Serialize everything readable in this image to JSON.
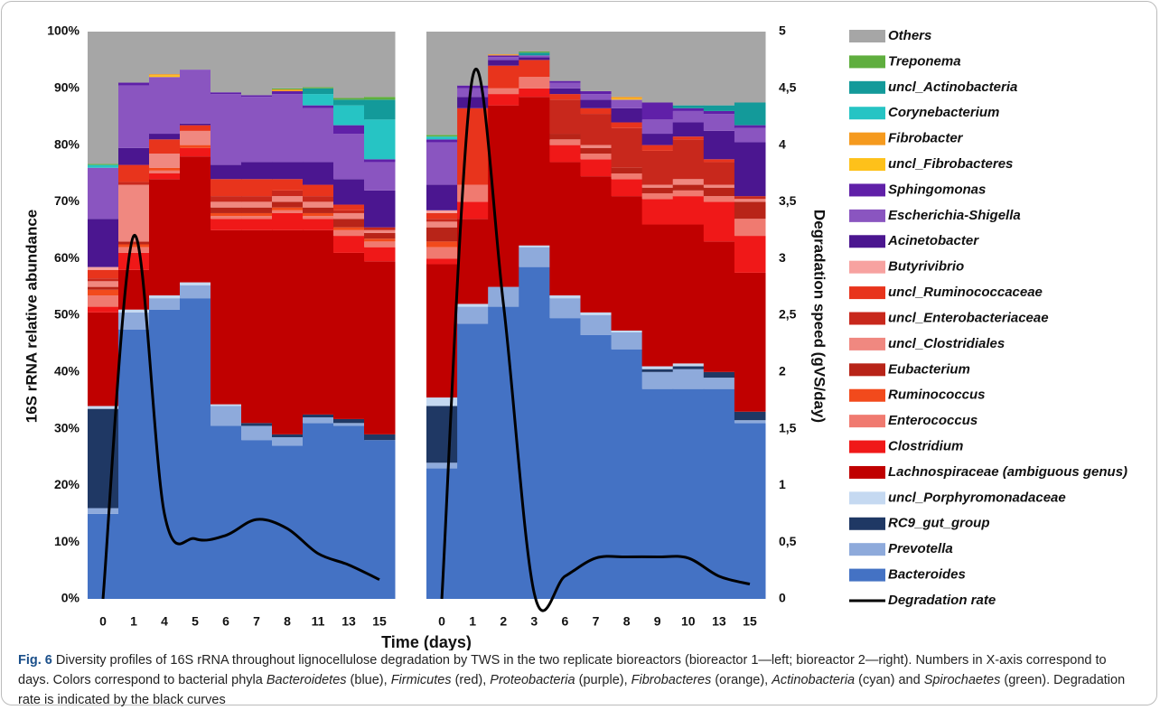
{
  "chart_data": {
    "type": "stacked_bar",
    "ylabel": "16S rRNA relative abundance",
    "y2label": "Degradation speed (gVS/day)",
    "xlabel": "Time (days)",
    "ylim": [
      0,
      100
    ],
    "yticks": [
      {
        "value": 0,
        "label": "0%"
      },
      {
        "value": 10,
        "label": "10%"
      },
      {
        "value": 20,
        "label": "20%"
      },
      {
        "value": 30,
        "label": "30%"
      },
      {
        "value": 40,
        "label": "40%"
      },
      {
        "value": 50,
        "label": "50%"
      },
      {
        "value": 60,
        "label": "60%"
      },
      {
        "value": 70,
        "label": "70%"
      },
      {
        "value": 80,
        "label": "80%"
      },
      {
        "value": 90,
        "label": "90%"
      },
      {
        "value": 100,
        "label": "100%"
      }
    ],
    "y2lim": [
      0,
      5
    ],
    "y2ticks": [
      0,
      {
        "value": 0.5,
        "label": "0,5"
      },
      1,
      {
        "value": 1.5,
        "label": "1,5"
      },
      2,
      {
        "value": 2.5,
        "label": "2,5"
      },
      3,
      {
        "value": 3.5,
        "label": "3,5"
      },
      4,
      {
        "value": 4.5,
        "label": "4,5"
      },
      5
    ],
    "categories": [
      [
        "0",
        "1",
        "4",
        "5",
        "6",
        "7",
        "8",
        "11",
        "13",
        "15"
      ],
      [
        "0",
        "1",
        "2",
        "3",
        "6",
        "7",
        "8",
        "9",
        "10",
        "13",
        "15"
      ]
    ],
    "series": [
      {
        "name": "Bacteroides",
        "color": "#4472c4",
        "values": [
          [
            15,
            47.5,
            51,
            53,
            30.5,
            28,
            27,
            31,
            30.5,
            28
          ],
          [
            23,
            48.5,
            51.5,
            58.5,
            49.5,
            46.5,
            44,
            37,
            37,
            37,
            31
          ]
        ]
      },
      {
        "name": "Prevotella",
        "color": "#8eaadb",
        "values": [
          [
            1,
            3,
            2,
            2.3,
            3.5,
            2.5,
            1.5,
            1,
            0.5,
            0
          ],
          [
            1,
            3,
            3.5,
            3.5,
            3.5,
            3.5,
            3,
            3,
            3.5,
            2,
            0.5
          ]
        ]
      },
      {
        "name": "RC9_gut_group",
        "color": "#1f3864",
        "values": [
          [
            17.5,
            0,
            0,
            0,
            0,
            0.5,
            0.5,
            0.5,
            0.7,
            1
          ],
          [
            10,
            0,
            0,
            0,
            0,
            0,
            0,
            0.5,
            0.5,
            1,
            1.5
          ]
        ]
      },
      {
        "name": "uncl_Porphyromonadaceae",
        "color": "#c5d9f1",
        "values": [
          [
            0.5,
            0.5,
            0.5,
            0.5,
            0.3,
            0,
            0,
            0,
            0,
            0
          ],
          [
            1.5,
            0.5,
            0,
            0.3,
            0.5,
            0.5,
            0.3,
            0.5,
            0.5,
            0,
            0
          ]
        ]
      },
      {
        "name": "Lachnospiraceae (ambiguous genus)",
        "color": "#c00000",
        "values": [
          [
            16.5,
            7,
            20.5,
            22.2,
            30.7,
            34,
            36,
            32.5,
            29.3,
            30.5
          ],
          [
            23.5,
            15,
            32,
            26.2,
            23.5,
            24,
            23.7,
            25,
            24.5,
            23,
            24.5
          ]
        ]
      },
      {
        "name": "Clostridium",
        "color": "#f01818",
        "values": [
          [
            1,
            3,
            1,
            1.5,
            2,
            2,
            3,
            2,
            3,
            2.5
          ],
          [
            1,
            3,
            2,
            1.5,
            3,
            3,
            3,
            4.5,
            5,
            7,
            6.5
          ]
        ]
      },
      {
        "name": "Enterococcus",
        "color": "#f07a70",
        "values": [
          [
            2,
            1,
            0.5,
            0,
            0.5,
            0.5,
            0.5,
            0.5,
            1,
            1
          ],
          [
            2,
            3,
            1,
            2,
            1,
            1,
            1,
            1,
            1,
            1,
            3
          ]
        ]
      },
      {
        "name": "Ruminococcus",
        "color": "#f24a1c",
        "values": [
          [
            1,
            0.5,
            0.5,
            0.5,
            0.5,
            0.5,
            0.5,
            0.5,
            0.5,
            0.5
          ],
          [
            1,
            0,
            0,
            0,
            0,
            0,
            0,
            0,
            0,
            0,
            0
          ]
        ]
      },
      {
        "name": "Eubacterium",
        "color": "#b82418",
        "values": [
          [
            0.5,
            0.5,
            0,
            0,
            1,
            1,
            1,
            1,
            1.5,
            1
          ],
          [
            2.5,
            0,
            0,
            0,
            1,
            1,
            1,
            1,
            1,
            1.5,
            3
          ]
        ]
      },
      {
        "name": "uncl_Clostridiales",
        "color": "#f08880",
        "values": [
          [
            1,
            10,
            2.5,
            2.5,
            1,
            1,
            1,
            1,
            1,
            0.5
          ],
          [
            1,
            0,
            0,
            0,
            0,
            0.5,
            0,
            0.5,
            1,
            0.5,
            0.5
          ]
        ]
      },
      {
        "name": "uncl_Enterobacteriaceae",
        "color": "#c8281c",
        "values": [
          [
            0.5,
            0.5,
            0,
            0,
            1,
            1,
            1,
            1,
            0.5,
            0.5
          ],
          [
            0.5,
            0,
            0,
            0,
            6,
            5.5,
            7,
            6,
            7,
            4,
            0.5
          ]
        ]
      },
      {
        "name": "uncl_Ruminococcaceae",
        "color": "#e8341c",
        "values": [
          [
            1.5,
            3,
            2.5,
            1,
            3,
            3,
            2,
            2,
            1,
            0
          ],
          [
            1,
            13.5,
            4,
            3,
            1,
            1,
            1,
            1,
            0.5,
            0.5,
            0
          ]
        ]
      },
      {
        "name": "Butyrivibrio",
        "color": "#f7a2a0",
        "values": [
          [
            0.5,
            0,
            0,
            0,
            0,
            0,
            0,
            0,
            0,
            0
          ],
          [
            0.5,
            0,
            0,
            0,
            0,
            0,
            0,
            0,
            0,
            0,
            0
          ]
        ]
      },
      {
        "name": "Acinetobacter",
        "color": "#4b1690",
        "values": [
          [
            8.5,
            3,
            1,
            0.3,
            2.5,
            3,
            3,
            4,
            4.5,
            6.5
          ],
          [
            4.5,
            2,
            1,
            0.5,
            1,
            1.5,
            2.5,
            2,
            2.5,
            5,
            9.5
          ]
        ]
      },
      {
        "name": "Escherichia-Shigella",
        "color": "#8a55c0",
        "values": [
          [
            9,
            11,
            10,
            9.5,
            12.5,
            11.5,
            12,
            9.5,
            8,
            5
          ],
          [
            7.5,
            1.5,
            0.5,
            0.3,
            1,
            1,
            1.5,
            2.5,
            2,
            3,
            2.5
          ]
        ]
      },
      {
        "name": "Sphingomonas",
        "color": "#6020a8",
        "values": [
          [
            0,
            0.5,
            0,
            0,
            0.3,
            0.3,
            0.5,
            0.5,
            1.5,
            0.5
          ],
          [
            0.5,
            0.5,
            0.3,
            0,
            0.3,
            0.5,
            0,
            3,
            0.5,
            0.5,
            0.5
          ]
        ]
      },
      {
        "name": "uncl_Fibrobacteres",
        "color": "#fec11a",
        "values": [
          [
            0,
            0,
            0.3,
            0,
            0,
            0,
            0,
            0,
            0,
            0
          ],
          [
            0,
            0,
            0,
            0,
            0,
            0,
            0.2,
            0,
            0,
            0,
            0
          ]
        ]
      },
      {
        "name": "Fibrobacter",
        "color": "#f59a1e",
        "values": [
          [
            0,
            0,
            0.2,
            0,
            0,
            0,
            0.3,
            0,
            0,
            0
          ],
          [
            0,
            0,
            0.2,
            0,
            0,
            0,
            0.3,
            0,
            0,
            0,
            0
          ]
        ]
      },
      {
        "name": "Corynebacterium",
        "color": "#26c4c4",
        "values": [
          [
            0.5,
            0,
            0,
            0,
            0,
            0,
            0,
            2,
            3.5,
            7
          ],
          [
            0.5,
            0,
            0,
            0,
            0,
            0,
            0,
            0,
            0,
            0,
            0
          ]
        ]
      },
      {
        "name": "uncl_Actinobacteria",
        "color": "#139a9a",
        "values": [
          [
            0,
            0,
            0,
            0,
            0,
            0,
            0,
            1,
            1,
            3.5
          ],
          [
            0,
            0,
            0,
            0.5,
            0,
            0,
            0,
            0,
            0.5,
            1,
            4
          ]
        ]
      },
      {
        "name": "Treponema",
        "color": "#5fae3e",
        "values": [
          [
            0.2,
            0,
            0,
            0,
            0,
            0,
            0.2,
            0.2,
            0.3,
            0.5
          ],
          [
            0.3,
            0,
            0,
            0.2,
            0,
            0,
            0,
            0,
            0,
            0,
            0
          ]
        ]
      },
      {
        "name": "Others",
        "color": "#a6a6a6",
        "values": [
          [
            23.3,
            9,
            7.5,
            6.7,
            10.7,
            11.2,
            10,
            9.8,
            11.7,
            11.5
          ],
          [
            18.2,
            9.5,
            4,
            3.5,
            8.7,
            10.5,
            11.5,
            12.5,
            13,
            13,
            12.5
          ]
        ]
      }
    ],
    "rate": {
      "name": "Degradation rate",
      "color": "#000000",
      "axis": "y2",
      "values": [
        [
          0,
          3.2,
          0.75,
          0.53,
          0.56,
          0.7,
          0.62,
          0.4,
          0.3,
          0.17
        ],
        [
          0,
          4.6,
          2.6,
          0.05,
          0.2,
          0.36,
          0.37,
          0.37,
          0.36,
          0.2,
          0.13
        ]
      ]
    }
  },
  "caption": {
    "label": "Fig. 6",
    "parts": [
      {
        "text": "Diversity profiles of 16S rRNA throughout lignocellulose degradation by TWS in the two replicate bioreactors (bioreactor 1—left; bioreactor 2—right). Numbers in X-axis correspond to days. Colors correspond to bacterial phyla",
        "italic": false
      },
      {
        "text": "Bacteroidetes",
        "italic": true
      },
      {
        "text": "(blue),",
        "italic": false
      },
      {
        "text": "Firmicutes",
        "italic": true
      },
      {
        "text": "(red),",
        "italic": false
      },
      {
        "text": "Proteobacteria",
        "italic": true
      },
      {
        "text": "(purple),",
        "italic": false
      },
      {
        "text": "Fibrobacteres",
        "italic": true
      },
      {
        "text": "(orange),",
        "italic": false
      },
      {
        "text": "Actinobacteria",
        "italic": true
      },
      {
        "text": "(cyan) and",
        "italic": false
      },
      {
        "text": "Spirochaetes",
        "italic": true
      },
      {
        "text": "(green). Degradation rate is indicated by the black curves",
        "italic": false
      }
    ]
  }
}
